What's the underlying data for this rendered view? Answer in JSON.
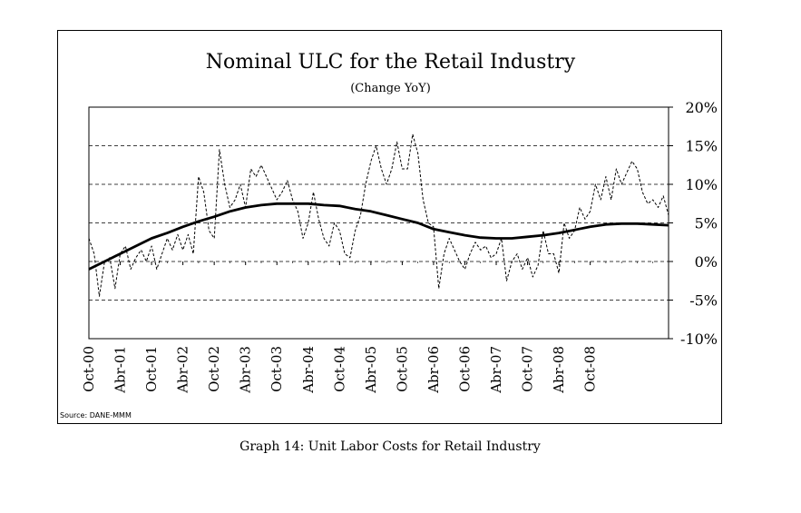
{
  "chart": {
    "title": "Nominal ULC for the Retail Industry",
    "subtitle": "(Change YoY)",
    "source": "Source: DANE-MMM",
    "caption": "Graph 14: Unit Labor Costs for Retail Industry"
  },
  "chart_data": {
    "type": "line",
    "title": "Nominal ULC for the Retail Industry",
    "subtitle": "(Change YoY)",
    "ylim": [
      -10,
      20
    ],
    "y_ticks": [
      -10,
      -5,
      0,
      5,
      10,
      15,
      20
    ],
    "y_tick_labels": [
      "-10%",
      "-5%",
      "0%",
      "5%",
      "10%",
      "15%",
      "20%"
    ],
    "y_axis_side": "right",
    "x_tick_labels": [
      "Oct-00",
      "Abr-01",
      "Oct-01",
      "Abr-02",
      "Oct-02",
      "Abr-03",
      "Oct-03",
      "Abr-04",
      "Oct-04",
      "Abr-05",
      "Oct-05",
      "Abr-06",
      "Oct-06",
      "Abr-07",
      "Oct-07",
      "Abr-08",
      "Oct-08"
    ],
    "x_periods_months": 96,
    "gridlines": "dashed horizontal at 5% steps",
    "series": [
      {
        "style": "dashed thin",
        "color": "#000000",
        "points": [
          [
            0,
            3
          ],
          [
            1,
            1
          ],
          [
            2,
            -4.5
          ],
          [
            3,
            0
          ],
          [
            4,
            0.5
          ],
          [
            5,
            -3.5
          ],
          [
            6,
            1
          ],
          [
            7,
            2
          ],
          [
            8,
            -1
          ],
          [
            9,
            0.5
          ],
          [
            10,
            1.5
          ],
          [
            11,
            0
          ],
          [
            12,
            2
          ],
          [
            13,
            -1
          ],
          [
            14,
            1
          ],
          [
            15,
            3
          ],
          [
            16,
            1.5
          ],
          [
            17,
            3.5
          ],
          [
            18,
            1.5
          ],
          [
            19,
            3.5
          ],
          [
            20,
            1
          ],
          [
            21,
            11
          ],
          [
            22,
            9
          ],
          [
            23,
            4
          ],
          [
            24,
            3
          ],
          [
            25,
            14.5
          ],
          [
            26,
            10
          ],
          [
            27,
            7
          ],
          [
            28,
            8
          ],
          [
            29,
            10
          ],
          [
            30,
            7
          ],
          [
            31,
            12
          ],
          [
            32,
            11
          ],
          [
            33,
            12.5
          ],
          [
            34,
            11
          ],
          [
            35,
            9.5
          ],
          [
            36,
            8
          ],
          [
            37,
            9
          ],
          [
            38,
            10.5
          ],
          [
            39,
            8
          ],
          [
            40,
            6.5
          ],
          [
            41,
            3
          ],
          [
            42,
            5
          ],
          [
            43,
            9
          ],
          [
            44,
            5.5
          ],
          [
            45,
            3
          ],
          [
            46,
            2
          ],
          [
            47,
            5
          ],
          [
            48,
            4
          ],
          [
            49,
            1
          ],
          [
            50,
            0.5
          ],
          [
            51,
            4
          ],
          [
            52,
            6
          ],
          [
            53,
            10
          ],
          [
            54,
            13
          ],
          [
            55,
            15
          ],
          [
            56,
            12
          ],
          [
            57,
            10
          ],
          [
            58,
            12
          ],
          [
            59,
            15.5
          ],
          [
            60,
            12
          ],
          [
            61,
            12
          ],
          [
            62,
            16.5
          ],
          [
            63,
            14
          ],
          [
            64,
            8
          ],
          [
            65,
            5
          ],
          [
            66,
            4.5
          ],
          [
            67,
            -3.5
          ],
          [
            68,
            1
          ],
          [
            69,
            3
          ],
          [
            70,
            1.5
          ],
          [
            71,
            0
          ],
          [
            72,
            -1
          ],
          [
            73,
            1
          ],
          [
            74,
            2.5
          ],
          [
            75,
            1.5
          ],
          [
            76,
            2
          ],
          [
            77,
            0.5
          ],
          [
            78,
            1
          ],
          [
            79,
            3
          ],
          [
            80,
            -2.5
          ],
          [
            81,
            0
          ],
          [
            82,
            1
          ],
          [
            83,
            -1
          ],
          [
            84,
            0.5
          ],
          [
            85,
            -2
          ],
          [
            86,
            -0.5
          ],
          [
            87,
            4
          ],
          [
            88,
            1
          ],
          [
            89,
            1
          ],
          [
            90,
            -1.5
          ],
          [
            91,
            5
          ],
          [
            92,
            3
          ],
          [
            93,
            4
          ],
          [
            94,
            7
          ],
          [
            95,
            5.5
          ],
          [
            96,
            6.5
          ],
          [
            97,
            10
          ],
          [
            98,
            8
          ],
          [
            99,
            11
          ],
          [
            100,
            8
          ],
          [
            101,
            12
          ],
          [
            102,
            10
          ],
          [
            103,
            11.5
          ],
          [
            104,
            13
          ],
          [
            105,
            12
          ],
          [
            106,
            9
          ],
          [
            107,
            7.5
          ],
          [
            108,
            8
          ],
          [
            109,
            7
          ],
          [
            110,
            8.5
          ],
          [
            111,
            6
          ]
        ]
      },
      {
        "style": "solid thick",
        "color": "#000000",
        "points": [
          [
            0,
            -1
          ],
          [
            3,
            0
          ],
          [
            6,
            1
          ],
          [
            9,
            2
          ],
          [
            12,
            3
          ],
          [
            15,
            3.7
          ],
          [
            18,
            4.5
          ],
          [
            21,
            5.2
          ],
          [
            24,
            5.8
          ],
          [
            27,
            6.5
          ],
          [
            30,
            7
          ],
          [
            33,
            7.3
          ],
          [
            36,
            7.5
          ],
          [
            39,
            7.5
          ],
          [
            42,
            7.5
          ],
          [
            45,
            7.3
          ],
          [
            48,
            7.2
          ],
          [
            51,
            6.8
          ],
          [
            54,
            6.5
          ],
          [
            57,
            6
          ],
          [
            60,
            5.5
          ],
          [
            63,
            5
          ],
          [
            66,
            4.2
          ],
          [
            69,
            3.8
          ],
          [
            72,
            3.4
          ],
          [
            75,
            3.1
          ],
          [
            78,
            3
          ],
          [
            81,
            3
          ],
          [
            84,
            3.2
          ],
          [
            87,
            3.4
          ],
          [
            90,
            3.7
          ],
          [
            93,
            4.1
          ],
          [
            96,
            4.5
          ],
          [
            99,
            4.8
          ],
          [
            102,
            4.9
          ],
          [
            105,
            4.9
          ],
          [
            108,
            4.8
          ],
          [
            111,
            4.7
          ]
        ]
      }
    ]
  }
}
